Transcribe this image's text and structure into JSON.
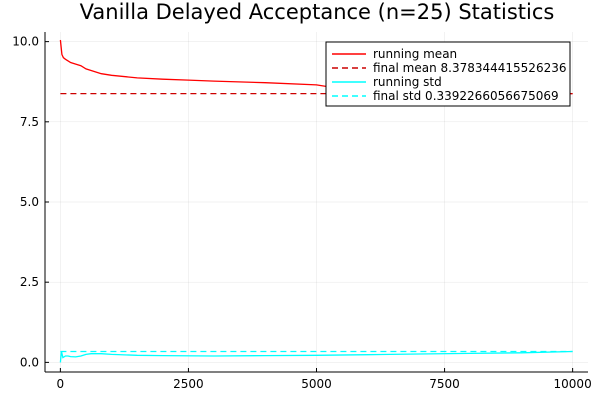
{
  "chart_data": {
    "type": "line",
    "title": "Vanilla Delayed Acceptance (n=25) Statistics",
    "xlim": [
      -300,
      10300
    ],
    "ylim": [
      -0.3,
      10.3
    ],
    "xticks": [
      0,
      2500,
      5000,
      7500,
      10000
    ],
    "xtick_labels": [
      "0",
      "2500",
      "5000",
      "7500",
      "10000"
    ],
    "yticks": [
      0.0,
      2.5,
      5.0,
      7.5,
      10.0
    ],
    "ytick_labels": [
      "0.0",
      "2.5",
      "5.0",
      "7.5",
      "10.0"
    ],
    "grid": true,
    "legend_position": "top-right",
    "series": [
      {
        "name": "running mean",
        "color": "#ff0000",
        "style": "solid",
        "x": [
          1,
          30,
          60,
          100,
          150,
          200,
          300,
          400,
          500,
          600,
          800,
          1000,
          1500,
          2000,
          2500,
          3000,
          4000,
          5000,
          5200,
          5500,
          6000,
          7000,
          8000,
          9000,
          10000
        ],
        "y": [
          10.05,
          9.6,
          9.5,
          9.45,
          9.4,
          9.35,
          9.3,
          9.25,
          9.15,
          9.1,
          9.0,
          8.95,
          8.87,
          8.83,
          8.8,
          8.77,
          8.72,
          8.65,
          8.6,
          8.55,
          8.5,
          8.45,
          8.42,
          8.4,
          8.38
        ]
      },
      {
        "name": "final mean 8.378344415526236",
        "color": "#cc0000",
        "style": "dashed",
        "x": [
          1,
          10000
        ],
        "y": [
          8.378344415526236,
          8.378344415526236
        ]
      },
      {
        "name": "running std",
        "color": "#00ffff",
        "style": "solid",
        "x": [
          1,
          20,
          50,
          100,
          150,
          200,
          300,
          400,
          500,
          600,
          800,
          1000,
          1500,
          2000,
          3000,
          4000,
          5000,
          6000,
          7000,
          8000,
          9000,
          10000
        ],
        "y": [
          0.0,
          0.35,
          0.15,
          0.2,
          0.2,
          0.18,
          0.17,
          0.2,
          0.25,
          0.27,
          0.27,
          0.25,
          0.22,
          0.21,
          0.2,
          0.21,
          0.22,
          0.24,
          0.26,
          0.28,
          0.3,
          0.34
        ]
      },
      {
        "name": "final std 0.3392266056675069",
        "color": "#00ffff",
        "style": "dashed",
        "x": [
          1,
          10000
        ],
        "y": [
          0.3392266056675069,
          0.3392266056675069
        ]
      }
    ]
  }
}
